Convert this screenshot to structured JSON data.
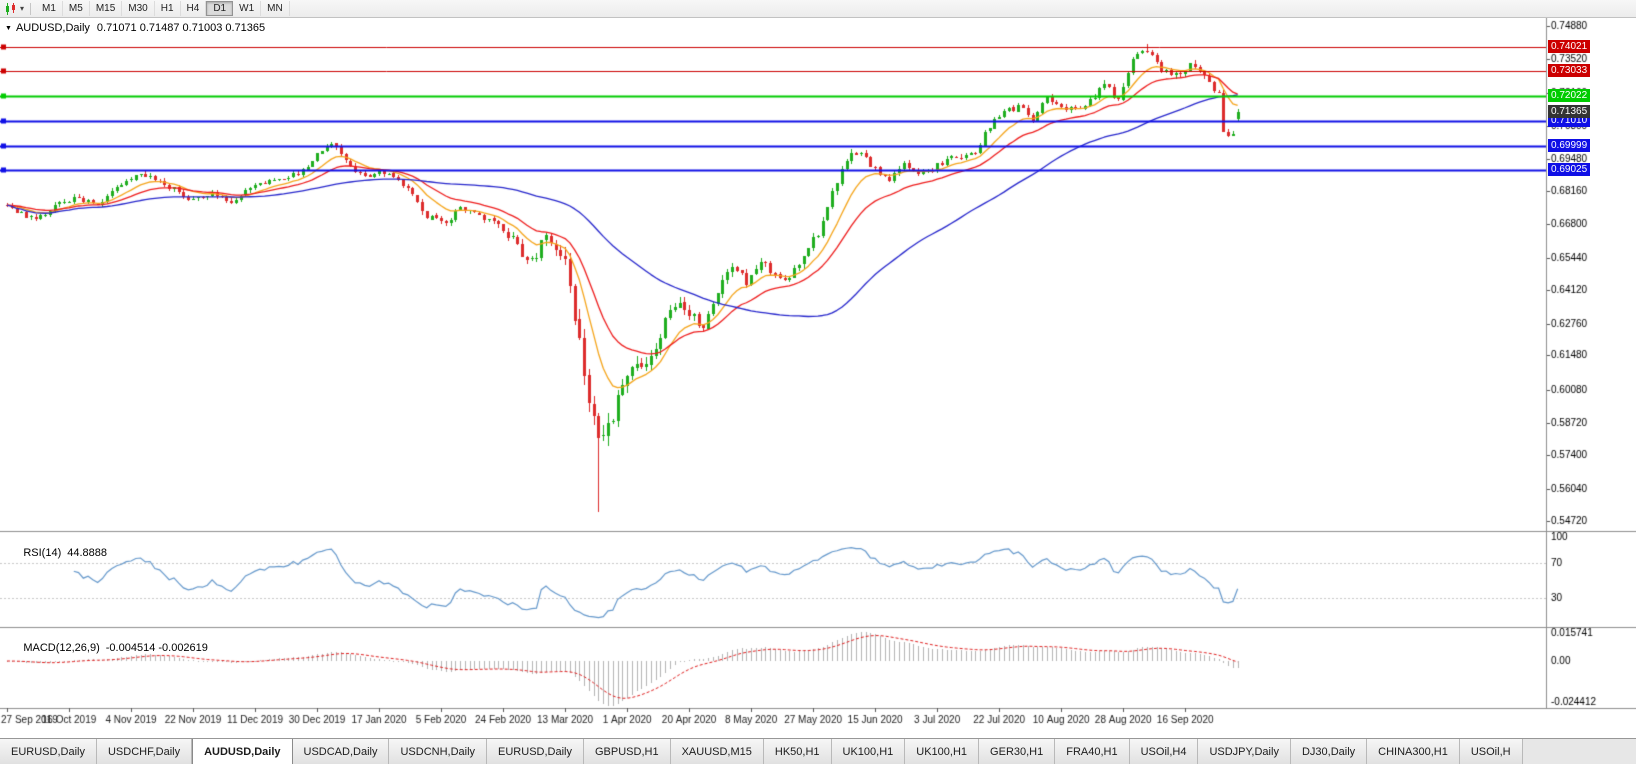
{
  "toolbar": {
    "timeframes": [
      "M1",
      "M5",
      "M15",
      "M30",
      "H1",
      "H4",
      "D1",
      "W1",
      "MN"
    ],
    "active_timeframe": "D1"
  },
  "icons": {
    "dropdown_caret": "▾",
    "collapse_triangle": "▼"
  },
  "chart": {
    "title": "AUDUSD,Daily",
    "ohlc": "0.71071 0.71487 0.71003 0.71365"
  },
  "chart_data": {
    "type": "candlestick",
    "symbol": "AUDUSD",
    "timeframe": "Daily",
    "last_open": 0.71071,
    "last_high": 0.71487,
    "last_low": 0.71003,
    "last_close": 0.71365,
    "current_price": 0.71365,
    "current_price_label_bg": "#333333",
    "num_candles": 259,
    "y_ticks": [
      0.7488,
      0.7352,
      0.7216,
      0.708,
      0.6948,
      0.6816,
      0.668,
      0.6544,
      0.6412,
      0.6276,
      0.6148,
      0.6008,
      0.5872,
      0.574,
      0.5604,
      0.5472
    ],
    "x_labels": [
      "27 Sep 2019",
      "16 Oct 2019",
      "4 Nov 2019",
      "22 Nov 2019",
      "11 Dec 2019",
      "30 Dec 2019",
      "17 Jan 2020",
      "5 Feb 2020",
      "24 Feb 2020",
      "13 Mar 2020",
      "1 Apr 2020",
      "20 Apr 2020",
      "8 May 2020",
      "27 May 2020",
      "15 Jun 2020",
      "3 Jul 2020",
      "22 Jul 2020",
      "10 Aug 2020",
      "28 Aug 2020",
      "16 Sep 2020"
    ],
    "candles_per_label": 13,
    "colors": {
      "candle_up": "#1fae1f",
      "candle_down": "#dd2c2c",
      "rsi_line": "#6699cc",
      "macd_histogram": "#b4b4b4",
      "macd_signal": "#e02020",
      "level_dash": "#c8c8c8",
      "separator": "#8e8e8e"
    },
    "moving_averages": [
      {
        "name": "ma-fast",
        "type": "ema",
        "period": 10,
        "color": "#f5a51b"
      },
      {
        "name": "ma-medium",
        "type": "ema",
        "period": 21,
        "color": "#ee1c1c"
      },
      {
        "name": "ma-slow",
        "type": "sma",
        "period": 55,
        "color": "#2626cc"
      }
    ],
    "horizontal_lines": [
      {
        "price": 0.74021,
        "color": "#cc0000",
        "width": 1
      },
      {
        "price": 0.73033,
        "color": "#cc0000",
        "width": 1
      },
      {
        "price": 0.72022,
        "color": "#00cc00",
        "width": 2
      },
      {
        "price": 0.7101,
        "color": "#0f0fe6",
        "width": 2
      },
      {
        "price": 0.69999,
        "color": "#0f0fe6",
        "width": 2
      },
      {
        "price": 0.69025,
        "color": "#0f0fe6",
        "width": 2
      }
    ],
    "price_keypoints": [
      [
        0,
        0.6768
      ],
      [
        3,
        0.6722
      ],
      [
        6,
        0.67
      ],
      [
        10,
        0.6752
      ],
      [
        14,
        0.6788
      ],
      [
        19,
        0.6762
      ],
      [
        24,
        0.6852
      ],
      [
        28,
        0.6896
      ],
      [
        33,
        0.6842
      ],
      [
        38,
        0.679
      ],
      [
        43,
        0.6806
      ],
      [
        47,
        0.6772
      ],
      [
        52,
        0.6838
      ],
      [
        57,
        0.6862
      ],
      [
        61,
        0.6886
      ],
      [
        64,
        0.6938
      ],
      [
        68,
        0.7018
      ],
      [
        71,
        0.6936
      ],
      [
        75,
        0.6872
      ],
      [
        79,
        0.6894
      ],
      [
        83,
        0.6846
      ],
      [
        88,
        0.6712
      ],
      [
        92,
        0.669
      ],
      [
        95,
        0.6736
      ],
      [
        99,
        0.6716
      ],
      [
        103,
        0.6688
      ],
      [
        106,
        0.6616
      ],
      [
        110,
        0.6522
      ],
      [
        113,
        0.6638
      ],
      [
        116,
        0.6586
      ],
      [
        118,
        0.6432
      ],
      [
        120,
        0.6186
      ],
      [
        122,
        0.5982
      ],
      [
        124,
        0.5788
      ],
      [
        126,
        0.5872
      ],
      [
        128,
        0.5962
      ],
      [
        131,
        0.6132
      ],
      [
        133,
        0.6076
      ],
      [
        136,
        0.6192
      ],
      [
        140,
        0.6356
      ],
      [
        143,
        0.6302
      ],
      [
        146,
        0.6276
      ],
      [
        149,
        0.6402
      ],
      [
        152,
        0.6512
      ],
      [
        155,
        0.6452
      ],
      [
        158,
        0.6532
      ],
      [
        161,
        0.6472
      ],
      [
        164,
        0.6446
      ],
      [
        167,
        0.6562
      ],
      [
        170,
        0.6642
      ],
      [
        173,
        0.6812
      ],
      [
        176,
        0.6946
      ],
      [
        179,
        0.6976
      ],
      [
        182,
        0.6902
      ],
      [
        185,
        0.6856
      ],
      [
        188,
        0.6936
      ],
      [
        191,
        0.6886
      ],
      [
        194,
        0.6906
      ],
      [
        197,
        0.6942
      ],
      [
        200,
        0.6956
      ],
      [
        203,
        0.6982
      ],
      [
        206,
        0.7082
      ],
      [
        209,
        0.7142
      ],
      [
        212,
        0.7156
      ],
      [
        215,
        0.7112
      ],
      [
        218,
        0.7192
      ],
      [
        221,
        0.7156
      ],
      [
        224,
        0.7142
      ],
      [
        227,
        0.7182
      ],
      [
        230,
        0.7246
      ],
      [
        233,
        0.7192
      ],
      [
        236,
        0.7352
      ],
      [
        239,
        0.7386
      ],
      [
        242,
        0.7312
      ],
      [
        245,
        0.7286
      ],
      [
        248,
        0.7326
      ],
      [
        250,
        0.7302
      ],
      [
        252,
        0.7252
      ],
      [
        254,
        0.7212
      ],
      [
        255,
        0.7062
      ],
      [
        256,
        0.7032
      ],
      [
        257,
        0.7036
      ],
      [
        258,
        0.7136
      ]
    ],
    "volatility_keypoints": [
      [
        0,
        0.002
      ],
      [
        60,
        0.0021
      ],
      [
        100,
        0.0028
      ],
      [
        112,
        0.004
      ],
      [
        118,
        0.0075
      ],
      [
        124,
        0.009
      ],
      [
        130,
        0.0065
      ],
      [
        138,
        0.0048
      ],
      [
        150,
        0.0036
      ],
      [
        170,
        0.003
      ],
      [
        200,
        0.0024
      ],
      [
        235,
        0.0026
      ],
      [
        258,
        0.0024
      ]
    ],
    "special_candles": [
      {
        "index": 124,
        "low": 0.551
      },
      {
        "index": 239,
        "high": 0.7414
      },
      {
        "index": 258,
        "open": 0.71071,
        "high": 0.71487,
        "low": 0.71003,
        "close": 0.71365
      }
    ],
    "indicators": {
      "rsi": {
        "label": "RSI(14)",
        "value": "44.8888",
        "period": 14,
        "levels": [
          100,
          70,
          30
        ]
      },
      "macd": {
        "label": "MACD(12,26,9)",
        "values": "-0.004514 -0.002619",
        "fast": 12,
        "slow": 26,
        "signal": 9,
        "scale_top_label": "0.015741",
        "scale_mid_label": "0.00",
        "scale_bottom_label": "-0.024412",
        "scale_top_value": 0.015741,
        "scale_bottom_value": -0.024412
      }
    }
  },
  "tabs": [
    "EURUSD,Daily",
    "USDCHF,Daily",
    "AUDUSD,Daily",
    "USDCAD,Daily",
    "USDCNH,Daily",
    "EURUSD,Daily",
    "GBPUSD,H1",
    "XAUUSD,M15",
    "HK50,H1",
    "UK100,H1",
    "UK100,H1",
    "GER30,H1",
    "FRA40,H1",
    "USOil,H4",
    "USDJPY,Daily",
    "DJ30,Daily",
    "CHINA300,H1",
    "USOil,H"
  ],
  "active_tab_index": 2
}
